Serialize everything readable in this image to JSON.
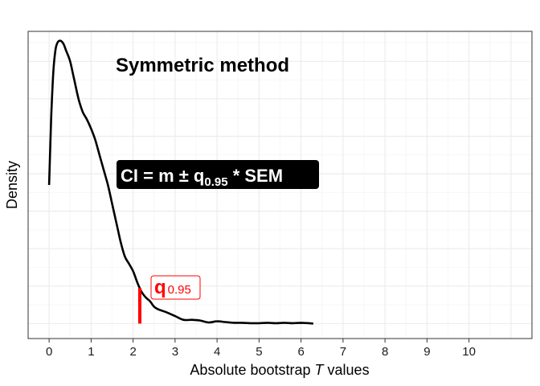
{
  "chart_data": {
    "type": "line",
    "title": "Symmetric method",
    "xlabel_prefix": "Absolute bootstrap ",
    "xlabel_italic": "T",
    "xlabel_suffix": " values",
    "ylabel": "Density",
    "xlim": [
      -0.5,
      11.5
    ],
    "ylim": [
      -0.04,
      0.78
    ],
    "x_ticks": [
      "0",
      "1",
      "2",
      "3",
      "4",
      "5",
      "6",
      "7",
      "8",
      "9",
      "10"
    ],
    "grid": true,
    "series": [
      {
        "color": "#000000",
        "x": [
          0.0,
          0.05,
          0.1,
          0.15,
          0.2,
          0.25,
          0.3,
          0.35,
          0.4,
          0.5,
          0.6,
          0.7,
          0.8,
          0.9,
          1.0,
          1.1,
          1.2,
          1.3,
          1.4,
          1.5,
          1.6,
          1.7,
          1.8,
          1.9,
          2.0,
          2.1,
          2.2,
          2.3,
          2.4,
          2.5,
          2.6,
          2.8,
          3.0,
          3.2,
          3.4,
          3.6,
          3.8,
          4.0,
          4.2,
          4.4,
          4.6,
          4.8,
          5.0,
          5.2,
          5.4,
          5.6,
          5.8,
          6.0,
          6.29
        ],
        "y": [
          0.37,
          0.55,
          0.67,
          0.73,
          0.75,
          0.755,
          0.753,
          0.745,
          0.73,
          0.7,
          0.65,
          0.6,
          0.565,
          0.545,
          0.52,
          0.49,
          0.45,
          0.41,
          0.37,
          0.32,
          0.27,
          0.22,
          0.18,
          0.16,
          0.14,
          0.11,
          0.085,
          0.07,
          0.06,
          0.045,
          0.038,
          0.03,
          0.02,
          0.01,
          0.01,
          0.008,
          0.003,
          0.006,
          0.004,
          0.002,
          0.002,
          0.001,
          0.001,
          0.002,
          0.001,
          0.002,
          0.001,
          0.002,
          0.0
        ]
      }
    ],
    "critical_value": {
      "x": 2.16,
      "color": "#ff0000"
    },
    "annotations": {
      "formula_pre": "CI = m ± q",
      "formula_sub": "0.95",
      "formula_post": " * SEM",
      "q_main": "q",
      "q_sub": "0.95"
    }
  }
}
